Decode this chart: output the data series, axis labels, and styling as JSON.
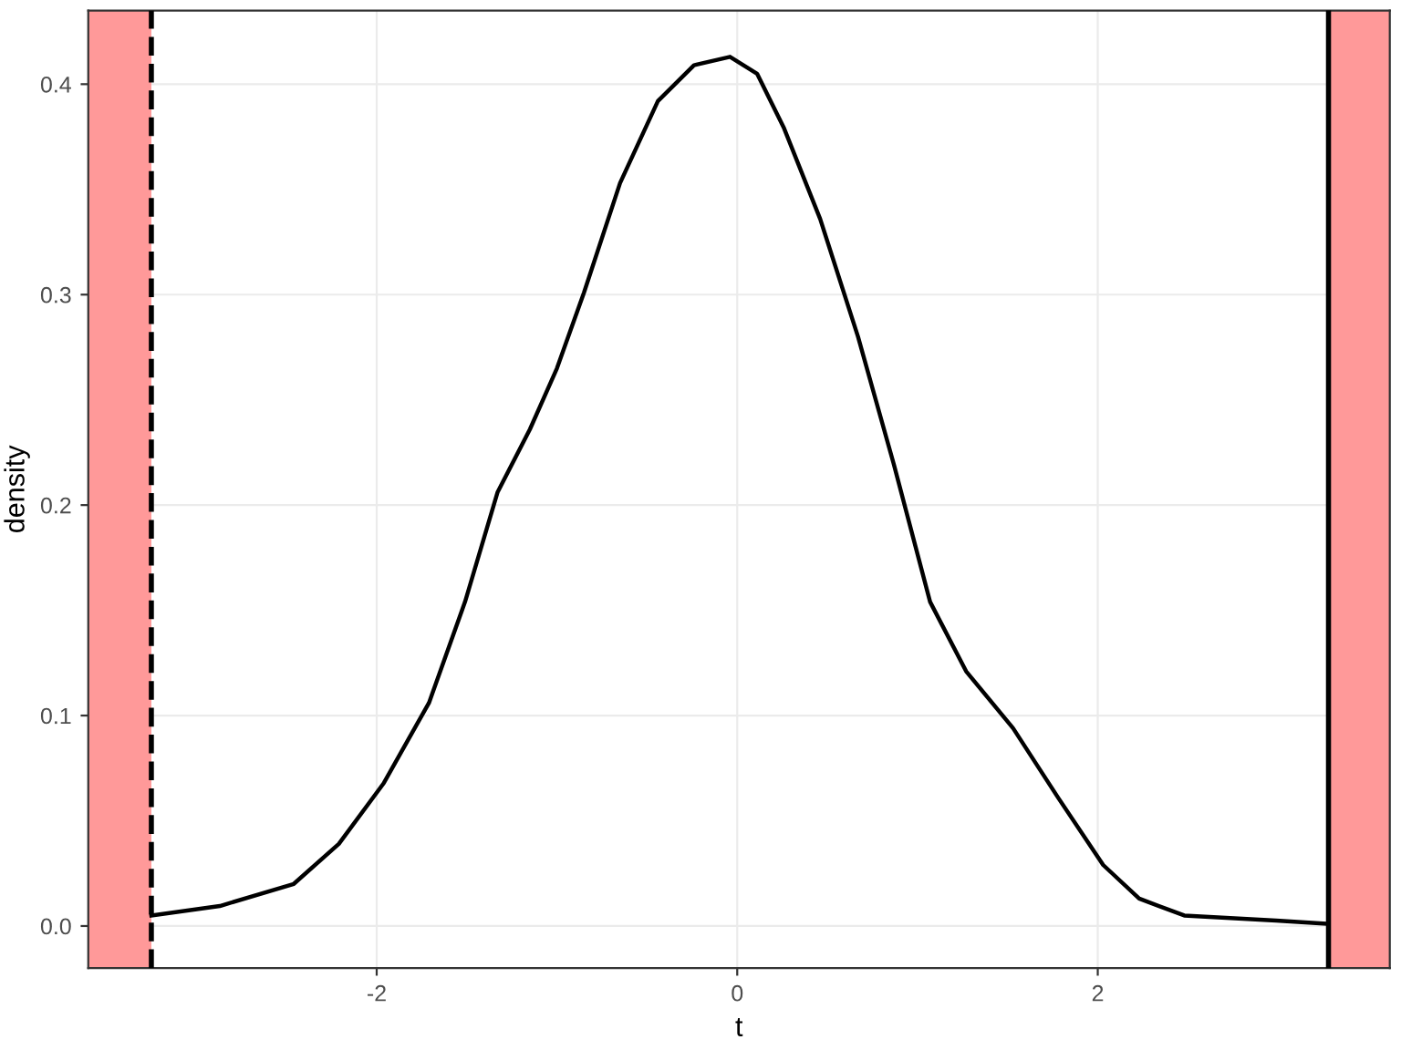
{
  "chart_data": {
    "type": "line",
    "xlabel": "t",
    "ylabel": "density",
    "x": [
      -3.25,
      -2.87,
      -2.46,
      -2.21,
      -1.96,
      -1.71,
      -1.51,
      -1.33,
      -1.15,
      -1.0,
      -0.85,
      -0.65,
      -0.44,
      -0.24,
      -0.04,
      0.11,
      0.26,
      0.46,
      0.67,
      0.87,
      1.07,
      1.27,
      1.53,
      1.78,
      2.03,
      2.23,
      2.48,
      2.99,
      3.28
    ],
    "series": [
      {
        "color": "#000000",
        "values": [
          0.005,
          0.0095,
          0.02,
          0.039,
          0.068,
          0.106,
          0.154,
          0.206,
          0.236,
          0.265,
          0.301,
          0.353,
          0.392,
          0.409,
          0.413,
          0.405,
          0.379,
          0.336,
          0.28,
          0.219,
          0.154,
          0.121,
          0.094,
          0.061,
          0.029,
          0.013,
          0.005,
          0.0026,
          0.001
        ]
      }
    ],
    "xlim": [
      -3.6,
      3.62
    ],
    "ylim": [
      -0.02,
      0.435
    ],
    "xticks": [
      -2,
      0,
      2
    ],
    "yticks": [
      {
        "value": 0,
        "label": "0.0"
      },
      0.1,
      0.2,
      0.3,
      0.4
    ],
    "bands": [
      {
        "axis": "x",
        "from": -3.6,
        "to": -3.25,
        "color": "#ff9999"
      },
      {
        "axis": "x",
        "from": 3.28,
        "to": 3.62,
        "color": "#ff9999"
      }
    ],
    "ref_lines": [
      {
        "axis": "x",
        "value": -3.25,
        "line_style": "dashed",
        "color": "#000000"
      },
      {
        "axis": "x",
        "value": 3.28,
        "line_style": "solid",
        "color": "#000000"
      }
    ],
    "grid": true,
    "line_style": "solid",
    "marker": "none"
  }
}
